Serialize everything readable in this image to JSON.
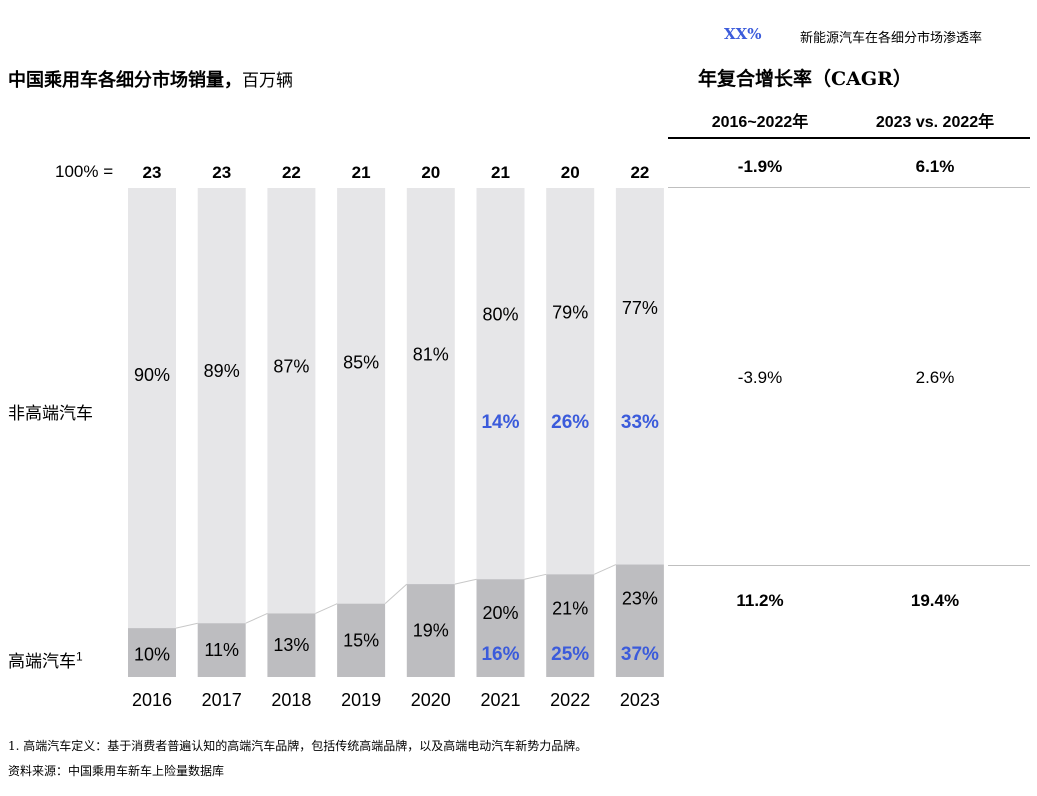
{
  "legend": {
    "key": "XX%",
    "text": "新能源汽车在各细分市场渗透率"
  },
  "chart_title": {
    "main": "中国乘用车各细分市场销量，",
    "unit": "百万辆"
  },
  "cagr": {
    "title": "年复合增长率（CAGR）",
    "col1": "2016~2022年",
    "col2": "2023 vs. 2022年",
    "rows": [
      {
        "v1": "-1.9%",
        "v2": "6.1%",
        "bold": true
      },
      {
        "v1": "-3.9%",
        "v2": "2.6%",
        "bold": false
      },
      {
        "v1": "11.2%",
        "v2": "19.4%",
        "bold": true
      }
    ]
  },
  "row_labels": {
    "total_prefix": "100% =",
    "non_premium": "非高端汽车",
    "premium": "高端汽车",
    "premium_sup": "1"
  },
  "footnotes": {
    "note1": "1.  高端汽车定义：基于消费者普遍认知的高端汽车品牌，包括传统高端品牌，以及高端电动汽车新势力品牌。",
    "source": "资料来源：中国乘用车新车上险量数据库"
  },
  "chart_data": {
    "type": "bar",
    "stacked": "100%",
    "categories": [
      "2016",
      "2017",
      "2018",
      "2019",
      "2020",
      "2021",
      "2022",
      "2023"
    ],
    "totals": [
      23,
      23,
      22,
      21,
      20,
      21,
      20,
      22
    ],
    "series": [
      {
        "name": "高端汽车",
        "values": [
          10,
          11,
          13,
          15,
          19,
          20,
          21,
          23
        ],
        "color": "#bdbdc0"
      },
      {
        "name": "非高端汽车",
        "values": [
          90,
          89,
          87,
          85,
          81,
          80,
          79,
          77
        ],
        "color": "#e6e6e8"
      }
    ],
    "nev_penetration": {
      "non_premium": [
        null,
        null,
        null,
        null,
        null,
        "14%",
        "26%",
        "33%"
      ],
      "premium": [
        null,
        null,
        null,
        null,
        null,
        "16%",
        "25%",
        "37%"
      ],
      "color": "#3b5bdb"
    },
    "ylim": [
      0,
      100
    ]
  }
}
